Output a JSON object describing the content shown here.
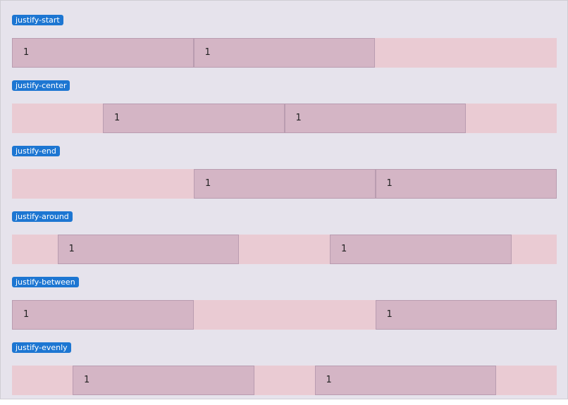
{
  "sections": [
    {
      "label": "justify-start",
      "items": [
        "1",
        "1"
      ]
    },
    {
      "label": "justify-center",
      "items": [
        "1",
        "1"
      ]
    },
    {
      "label": "justify-end",
      "items": [
        "1",
        "1"
      ]
    },
    {
      "label": "justify-around",
      "items": [
        "1",
        "1"
      ]
    },
    {
      "label": "justify-between",
      "items": [
        "1",
        "1"
      ]
    },
    {
      "label": "justify-evenly",
      "items": [
        "1",
        "1"
      ]
    }
  ]
}
